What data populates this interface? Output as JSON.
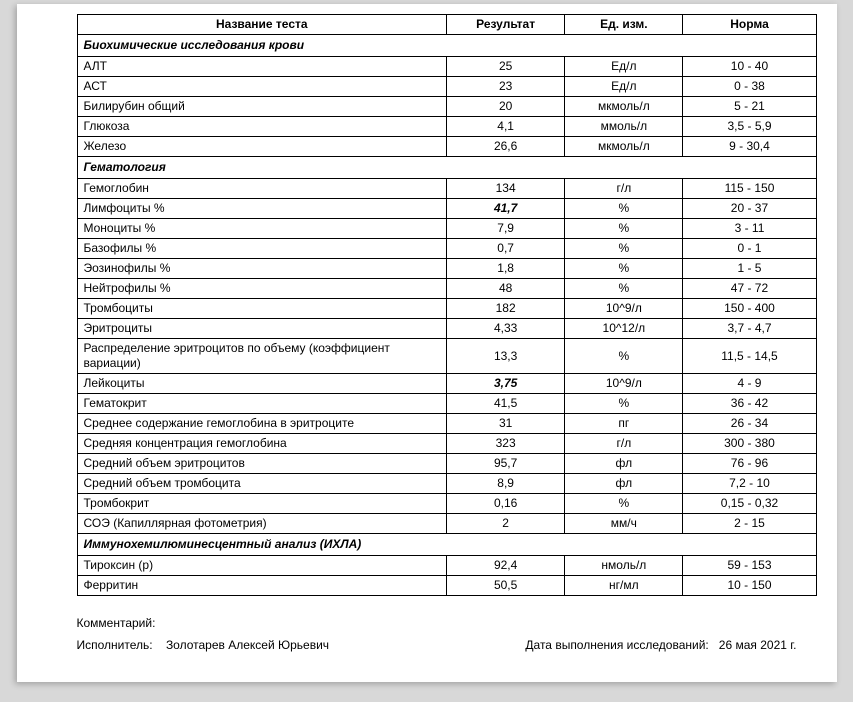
{
  "headers": {
    "name": "Название теста",
    "result": "Результат",
    "unit": "Ед. изм.",
    "norm": "Норма"
  },
  "sections": [
    {
      "title": "Биохимические исследования крови",
      "rows": [
        {
          "name": "АЛТ",
          "result": "25",
          "unit": "Ед/л",
          "norm": "10 - 40",
          "bold": false
        },
        {
          "name": "АСТ",
          "result": "23",
          "unit": "Ед/л",
          "norm": "0 - 38",
          "bold": false
        },
        {
          "name": "Билирубин общий",
          "result": "20",
          "unit": "мкмоль/л",
          "norm": "5 - 21",
          "bold": false
        },
        {
          "name": "Глюкоза",
          "result": "4,1",
          "unit": "ммоль/л",
          "norm": "3,5 - 5,9",
          "bold": false
        },
        {
          "name": "Железо",
          "result": "26,6",
          "unit": "мкмоль/л",
          "norm": "9 - 30,4",
          "bold": false
        }
      ]
    },
    {
      "title": "Гематология",
      "rows": [
        {
          "name": "Гемоглобин",
          "result": "134",
          "unit": "г/л",
          "norm": "115 - 150",
          "bold": false
        },
        {
          "name": "Лимфоциты %",
          "result": "41,7",
          "unit": "%",
          "norm": "20 - 37",
          "bold": true
        },
        {
          "name": "Моноциты %",
          "result": "7,9",
          "unit": "%",
          "norm": "3 - 11",
          "bold": false
        },
        {
          "name": "Базофилы %",
          "result": "0,7",
          "unit": "%",
          "norm": "0 - 1",
          "bold": false
        },
        {
          "name": "Эозинофилы %",
          "result": "1,8",
          "unit": "%",
          "norm": "1 - 5",
          "bold": false
        },
        {
          "name": "Нейтрофилы %",
          "result": "48",
          "unit": "%",
          "norm": "47 - 72",
          "bold": false
        },
        {
          "name": "Тромбоциты",
          "result": "182",
          "unit": "10^9/л",
          "norm": "150 - 400",
          "bold": false
        },
        {
          "name": "Эритроциты",
          "result": "4,33",
          "unit": "10^12/л",
          "norm": "3,7 - 4,7",
          "bold": false
        },
        {
          "name": "Распределение эритроцитов по объему (коэффициент вариации)",
          "result": "13,3",
          "unit": "%",
          "norm": "11,5 - 14,5",
          "bold": false
        },
        {
          "name": "Лейкоциты",
          "result": "3,75",
          "unit": "10^9/л",
          "norm": "4 - 9",
          "bold": true
        },
        {
          "name": "Гематокрит",
          "result": "41,5",
          "unit": "%",
          "norm": "36 - 42",
          "bold": false
        },
        {
          "name": "Среднее содержание гемоглобина в эритроците",
          "result": "31",
          "unit": "пг",
          "norm": "26 - 34",
          "bold": false
        },
        {
          "name": "Средняя концентрация гемоглобина",
          "result": "323",
          "unit": "г/л",
          "norm": "300 - 380",
          "bold": false
        },
        {
          "name": "Средний объем эритроцитов",
          "result": "95,7",
          "unit": "фл",
          "norm": "76 - 96",
          "bold": false
        },
        {
          "name": "Средний объем тромбоцита",
          "result": "8,9",
          "unit": "фл",
          "norm": "7,2 - 10",
          "bold": false
        },
        {
          "name": "Тромбокрит",
          "result": "0,16",
          "unit": "%",
          "norm": "0,15 - 0,32",
          "bold": false
        },
        {
          "name": "СОЭ (Капиллярная фотометрия)",
          "result": "2",
          "unit": "мм/ч",
          "norm": "2 - 15",
          "bold": false
        }
      ]
    },
    {
      "title": "Иммунохемилюминесцентный анализ (ИХЛА)",
      "rows": [
        {
          "name": "Тироксин (р)",
          "result": "92,4",
          "unit": "нмоль/л",
          "norm": "59 - 153",
          "bold": false
        },
        {
          "name": "Ферритин",
          "result": "50,5",
          "unit": "нг/мл",
          "norm": "10 - 150",
          "bold": false
        }
      ]
    }
  ],
  "footer": {
    "comment_label": "Комментарий:",
    "executor_label": "Исполнитель:",
    "executor_name": "Золотарев Алексей Юрьевич",
    "date_label": "Дата выполнения исследований:",
    "date_value": "26 мая 2021 г."
  },
  "style": {
    "page_bg": "#ffffff",
    "outer_bg": "#d8d8d8",
    "border_color": "#000000",
    "font_size_pt": 12
  }
}
